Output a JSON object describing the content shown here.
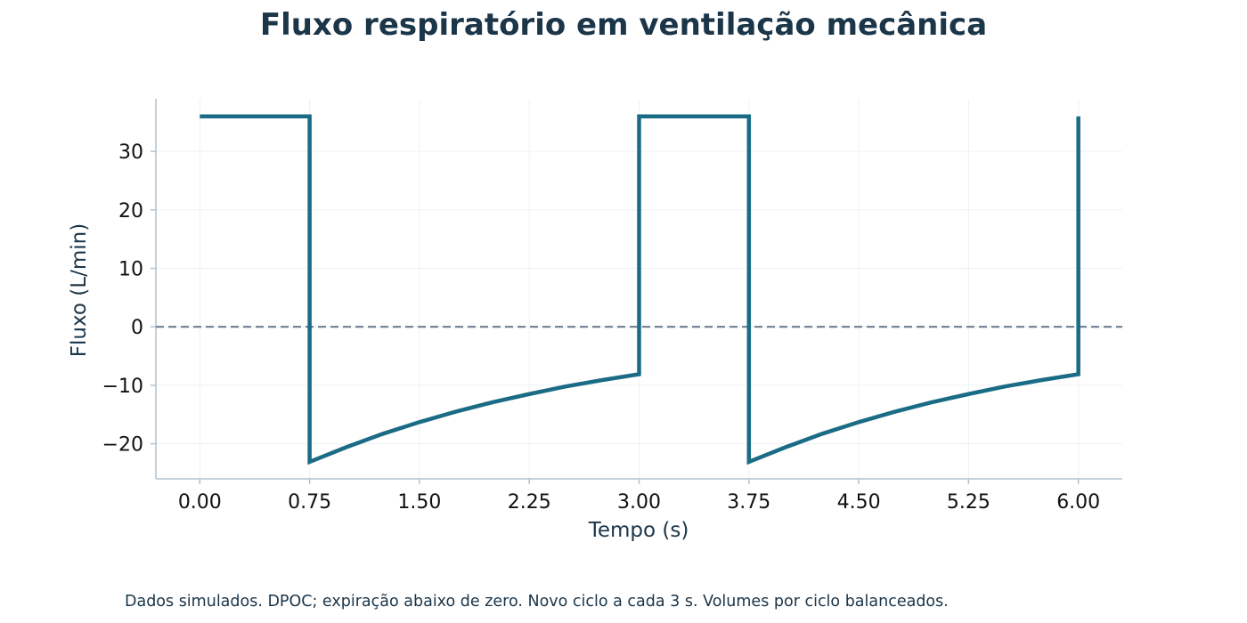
{
  "chart_data": {
    "type": "line",
    "title": "Fluxo respiratório em ventilação mecânica",
    "xlabel": "Tempo (s)",
    "ylabel": "Fluxo (L/min)",
    "xlim": [
      -0.3,
      6.3
    ],
    "ylim": [
      -26,
      39
    ],
    "x_ticks": [
      "0.00",
      "0.75",
      "1.50",
      "2.25",
      "3.00",
      "3.75",
      "4.50",
      "5.25",
      "6.00"
    ],
    "y_ticks": [
      "30",
      "20",
      "10",
      "0",
      "−10",
      "−20"
    ],
    "grid": true,
    "legend": "none",
    "reference_line": {
      "y": 0,
      "style": "dashed",
      "color": "#6e7f91"
    },
    "colors": {
      "line": "#1a6b85",
      "title": "#1b3549",
      "axis": "#b3c0cc",
      "grid": "#eef1f4"
    },
    "series": [
      {
        "points": [
          [
            0.0,
            36
          ],
          [
            0.75,
            36
          ],
          [
            0.75,
            -23.1
          ],
          [
            1.0,
            -20.6
          ],
          [
            1.25,
            -18.3
          ],
          [
            1.5,
            -16.3
          ],
          [
            1.75,
            -14.5
          ],
          [
            2.0,
            -12.9
          ],
          [
            2.25,
            -11.5
          ],
          [
            2.5,
            -10.2
          ],
          [
            2.75,
            -9.1
          ],
          [
            3.0,
            -8.1
          ],
          [
            3.0,
            36
          ],
          [
            3.75,
            36
          ],
          [
            3.75,
            -23.1
          ],
          [
            4.0,
            -20.6
          ],
          [
            4.25,
            -18.3
          ],
          [
            4.5,
            -16.3
          ],
          [
            4.75,
            -14.5
          ],
          [
            5.0,
            -12.9
          ],
          [
            5.25,
            -11.5
          ],
          [
            5.5,
            -10.2
          ],
          [
            5.75,
            -9.1
          ],
          [
            6.0,
            -8.1
          ],
          [
            6.0,
            36
          ]
        ]
      }
    ],
    "footnote": "Dados simulados. DPOC; expiração abaixo de zero. Novo ciclo a cada 3 s. Volumes por ciclo balanceados."
  }
}
